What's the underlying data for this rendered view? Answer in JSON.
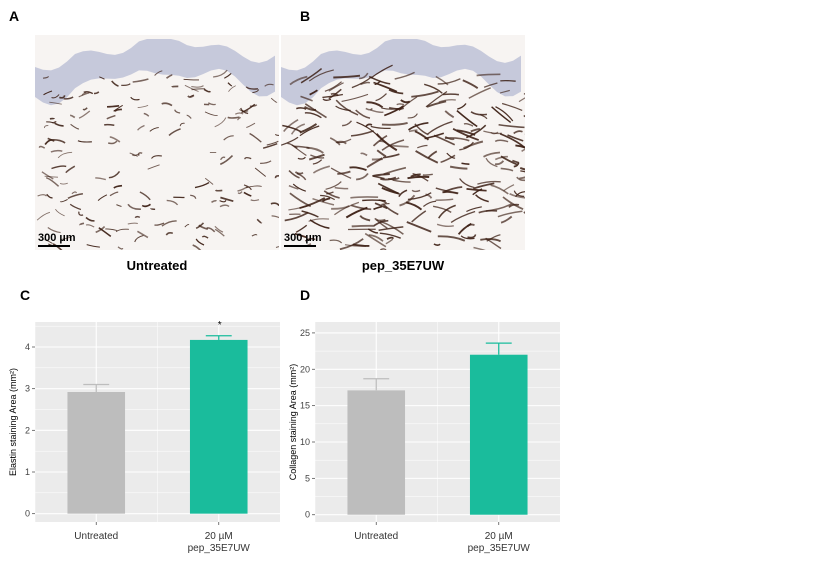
{
  "panels": {
    "a_letter": "A",
    "b_letter": "B",
    "c_letter": "C",
    "d_letter": "D"
  },
  "micrographs": [
    {
      "scale_label": "300 µm",
      "caption": "Untreated",
      "fiber_density": "low"
    },
    {
      "scale_label": "300 µm",
      "caption": "pep_35E7UW",
      "fiber_density": "high"
    }
  ],
  "colors": {
    "untreated": "#bdbdbd",
    "treated": "#1abc9c",
    "panel_bg": "#ebebeb",
    "grid": "#ffffff",
    "stain": "#3a1d12",
    "epidermis": "#9ea5c8"
  },
  "chart_data": [
    {
      "type": "bar",
      "categories": [
        "Untreated",
        "20 µM\npep_35E7UW"
      ],
      "values": [
        2.92,
        4.17
      ],
      "errors": [
        0.18,
        0.1
      ],
      "ylabel": "Elastin staining Area (mm²)",
      "ylim": [
        -0.2,
        4.6
      ],
      "yticks": [
        0,
        1,
        2,
        3,
        4
      ],
      "annotation": "*",
      "annotation_on": 1,
      "grid": true
    },
    {
      "type": "bar",
      "categories": [
        "Untreated",
        "20 µM\npep_35E7UW"
      ],
      "values": [
        17.1,
        22.0
      ],
      "errors": [
        1.6,
        1.6
      ],
      "ylabel": "Collagen staining Area (mm²)",
      "ylim": [
        -1.0,
        26.5
      ],
      "yticks": [
        0,
        5,
        10,
        15,
        20,
        25
      ],
      "annotation": "",
      "annotation_on": -1,
      "grid": true
    }
  ]
}
